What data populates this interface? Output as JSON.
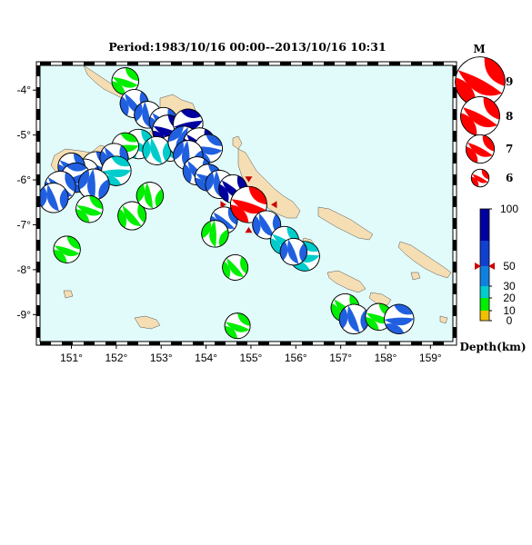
{
  "title": "Period:1983/10/16 00:00--2013/10/16 10:31",
  "map": {
    "lon_min": 150.3,
    "lon_max": 159.5,
    "lat_min": -9.6,
    "lat_max": -3.45,
    "lon_ticks": [
      "151°",
      "152°",
      "153°",
      "154°",
      "155°",
      "156°",
      "157°",
      "158°",
      "159°"
    ],
    "lon_tick_values": [
      151,
      152,
      153,
      154,
      155,
      156,
      157,
      158,
      159
    ],
    "lat_ticks": [
      "-4°",
      "-5°",
      "-6°",
      "-7°",
      "-8°",
      "-9°"
    ],
    "lat_tick_values": [
      -4,
      -5,
      -6,
      -7,
      -8,
      -9
    ],
    "ocean_color": "#e1fafa",
    "land_color": "#f5deb3"
  },
  "mechanisms": [
    {
      "lon": 152.2,
      "lat": -3.8,
      "mag": 6.3,
      "depth": 15,
      "rot": 0
    },
    {
      "lon": 152.4,
      "lat": -4.3,
      "mag": 6.4,
      "depth": 40,
      "rot": 30
    },
    {
      "lon": 152.7,
      "lat": -4.55,
      "mag": 6.3,
      "depth": 35,
      "rot": 60
    },
    {
      "lon": 153.05,
      "lat": -4.7,
      "mag": 6.4,
      "depth": 45,
      "rot": 20
    },
    {
      "lon": 153.15,
      "lat": -4.9,
      "mag": 6.6,
      "depth": 90,
      "rot": 0
    },
    {
      "lon": 153.6,
      "lat": -4.75,
      "mag": 6.5,
      "depth": 95,
      "rot": -30
    },
    {
      "lon": 153.2,
      "lat": -5.3,
      "mag": 6.2,
      "depth": 30,
      "rot": 40
    },
    {
      "lon": 152.5,
      "lat": -5.2,
      "mag": 6.5,
      "depth": 25,
      "rot": 10
    },
    {
      "lon": 152.2,
      "lat": -5.25,
      "mag": 6.3,
      "depth": 15,
      "rot": -20
    },
    {
      "lon": 152.9,
      "lat": -5.35,
      "mag": 6.4,
      "depth": 30,
      "rot": 50
    },
    {
      "lon": 153.5,
      "lat": -5.15,
      "mag": 6.6,
      "depth": 40,
      "rot": 90
    },
    {
      "lon": 153.85,
      "lat": -5.2,
      "mag": 6.7,
      "depth": 100,
      "rot": 20
    },
    {
      "lon": 154.05,
      "lat": -5.3,
      "mag": 6.4,
      "depth": 45,
      "rot": -10
    },
    {
      "lon": 153.6,
      "lat": -5.45,
      "mag": 6.5,
      "depth": 38,
      "rot": 70
    },
    {
      "lon": 153.8,
      "lat": -5.8,
      "mag": 6.4,
      "depth": 42,
      "rot": 30
    },
    {
      "lon": 154.05,
      "lat": -5.95,
      "mag": 6.3,
      "depth": 40,
      "rot": 0
    },
    {
      "lon": 154.3,
      "lat": -6.1,
      "mag": 6.4,
      "depth": 45,
      "rot": 60
    },
    {
      "lon": 154.6,
      "lat": -6.2,
      "mag": 6.4,
      "depth": 80,
      "rot": 20
    },
    {
      "lon": 151.55,
      "lat": -5.7,
      "mag": 6.5,
      "depth": 35,
      "rot": 0
    },
    {
      "lon": 151.95,
      "lat": -5.5,
      "mag": 6.4,
      "depth": 38,
      "rot": 30
    },
    {
      "lon": 152.0,
      "lat": -5.8,
      "mag": 6.5,
      "depth": 30,
      "rot": -20
    },
    {
      "lon": 151.3,
      "lat": -5.85,
      "mag": 6.4,
      "depth": 40,
      "rot": 60
    },
    {
      "lon": 151.0,
      "lat": -5.7,
      "mag": 6.3,
      "depth": 35,
      "rot": 10
    },
    {
      "lon": 151.1,
      "lat": -5.95,
      "mag": 6.5,
      "depth": 40,
      "rot": -40
    },
    {
      "lon": 151.5,
      "lat": -6.1,
      "mag": 6.6,
      "depth": 42,
      "rot": 70
    },
    {
      "lon": 150.75,
      "lat": -6.15,
      "mag": 6.6,
      "depth": 40,
      "rot": 20
    },
    {
      "lon": 150.6,
      "lat": -6.4,
      "mag": 6.5,
      "depth": 40,
      "rot": 50
    },
    {
      "lon": 151.4,
      "lat": -6.65,
      "mag": 6.3,
      "depth": 15,
      "rot": 0
    },
    {
      "lon": 152.35,
      "lat": -6.8,
      "mag": 6.4,
      "depth": 12,
      "rot": 30
    },
    {
      "lon": 152.75,
      "lat": -6.35,
      "mag": 6.3,
      "depth": 14,
      "rot": 60
    },
    {
      "lon": 154.4,
      "lat": -6.9,
      "mag": 6.3,
      "depth": 40,
      "rot": 20
    },
    {
      "lon": 154.95,
      "lat": -6.55,
      "mag": 7.0,
      "depth": 50,
      "rot": 0,
      "highlight": true
    },
    {
      "lon": 155.35,
      "lat": -7.0,
      "mag": 6.4,
      "depth": 38,
      "rot": 40
    },
    {
      "lon": 155.75,
      "lat": -7.35,
      "mag": 6.4,
      "depth": 32,
      "rot": 10
    },
    {
      "lon": 156.2,
      "lat": -7.7,
      "mag": 6.5,
      "depth": 20,
      "rot": -20
    },
    {
      "lon": 155.95,
      "lat": -7.6,
      "mag": 6.3,
      "depth": 35,
      "rot": 50
    },
    {
      "lon": 154.2,
      "lat": -7.2,
      "mag": 6.3,
      "depth": 18,
      "rot": 70
    },
    {
      "lon": 150.9,
      "lat": -7.55,
      "mag": 6.3,
      "depth": 15,
      "rot": 0
    },
    {
      "lon": 154.65,
      "lat": -7.95,
      "mag": 6.2,
      "depth": 18,
      "rot": 30
    },
    {
      "lon": 154.7,
      "lat": -9.25,
      "mag": 6.2,
      "depth": 16,
      "rot": 0
    },
    {
      "lon": 157.1,
      "lat": -8.85,
      "mag": 6.4,
      "depth": 14,
      "rot": 20
    },
    {
      "lon": 157.3,
      "lat": -9.1,
      "mag": 6.5,
      "depth": 40,
      "rot": 50
    },
    {
      "lon": 157.85,
      "lat": -9.05,
      "mag": 6.3,
      "depth": 15,
      "rot": 0
    },
    {
      "lon": 158.3,
      "lat": -9.1,
      "mag": 6.5,
      "depth": 42,
      "rot": -20
    }
  ],
  "mag_legend": {
    "title": "M",
    "items": [
      {
        "mag": 9,
        "label": "9"
      },
      {
        "mag": 8,
        "label": "8"
      },
      {
        "mag": 7,
        "label": "7"
      },
      {
        "mag": 6,
        "label": "6"
      }
    ]
  },
  "depth_legend": {
    "title": "Depth(km)",
    "labels": [
      "100",
      "50",
      "30",
      "20",
      "10",
      "0"
    ],
    "values": [
      100,
      50,
      30,
      20,
      10,
      0
    ],
    "marker_value": 50,
    "colors": {
      "shallow": "#f0c000",
      "green": "#00ee00",
      "cyan": "#00cccc",
      "blue": "#2060e0",
      "deep": "#0000a0"
    }
  },
  "colors": {
    "highlight": "#ff0000",
    "marker": "#cc0000"
  }
}
